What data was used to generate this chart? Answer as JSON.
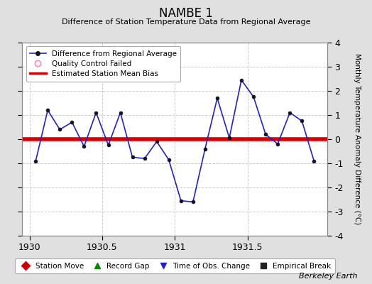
{
  "title": "NAMBE 1",
  "subtitle": "Difference of Station Temperature Data from Regional Average",
  "ylabel_right": "Monthly Temperature Anomaly Difference (°C)",
  "credit": "Berkeley Earth",
  "xlim": [
    1929.95,
    1932.05
  ],
  "ylim": [
    -4,
    4
  ],
  "yticks": [
    -4,
    -3,
    -2,
    -1,
    0,
    1,
    2,
    3,
    4
  ],
  "xticks": [
    1930,
    1930.5,
    1931,
    1931.5
  ],
  "xtick_labels": [
    "1930",
    "1930.5",
    "1931",
    "1931.5"
  ],
  "bias": 0.0,
  "bias_color": "#dd0000",
  "line_color": "#2222cc",
  "marker_facecolor": "#111122",
  "marker_edgecolor": "#111122",
  "background_color": "#e0e0e0",
  "plot_bg_color": "#ffffff",
  "x_data": [
    1930.042,
    1930.125,
    1930.208,
    1930.292,
    1930.375,
    1930.458,
    1930.542,
    1930.625,
    1930.708,
    1930.792,
    1930.875,
    1930.958,
    1931.042,
    1931.125,
    1931.208,
    1931.292,
    1931.375,
    1931.458,
    1931.542,
    1931.625,
    1931.708,
    1931.792,
    1931.875,
    1931.958
  ],
  "y_data": [
    -0.9,
    1.2,
    0.4,
    0.7,
    -0.3,
    1.1,
    -0.25,
    1.1,
    -0.75,
    -0.8,
    -0.1,
    -0.85,
    -2.55,
    -2.6,
    -0.4,
    1.7,
    0.05,
    2.45,
    1.75,
    0.2,
    -0.2,
    1.1,
    0.75,
    -0.9
  ],
  "grid_color": "#cccccc",
  "bottom_legend": [
    {
      "label": "Station Move",
      "marker": "D",
      "color": "#cc0000"
    },
    {
      "label": "Record Gap",
      "marker": "^",
      "color": "#008800"
    },
    {
      "label": "Time of Obs. Change",
      "marker": "v",
      "color": "#2222cc"
    },
    {
      "label": "Empirical Break",
      "marker": "s",
      "color": "#222222"
    }
  ]
}
